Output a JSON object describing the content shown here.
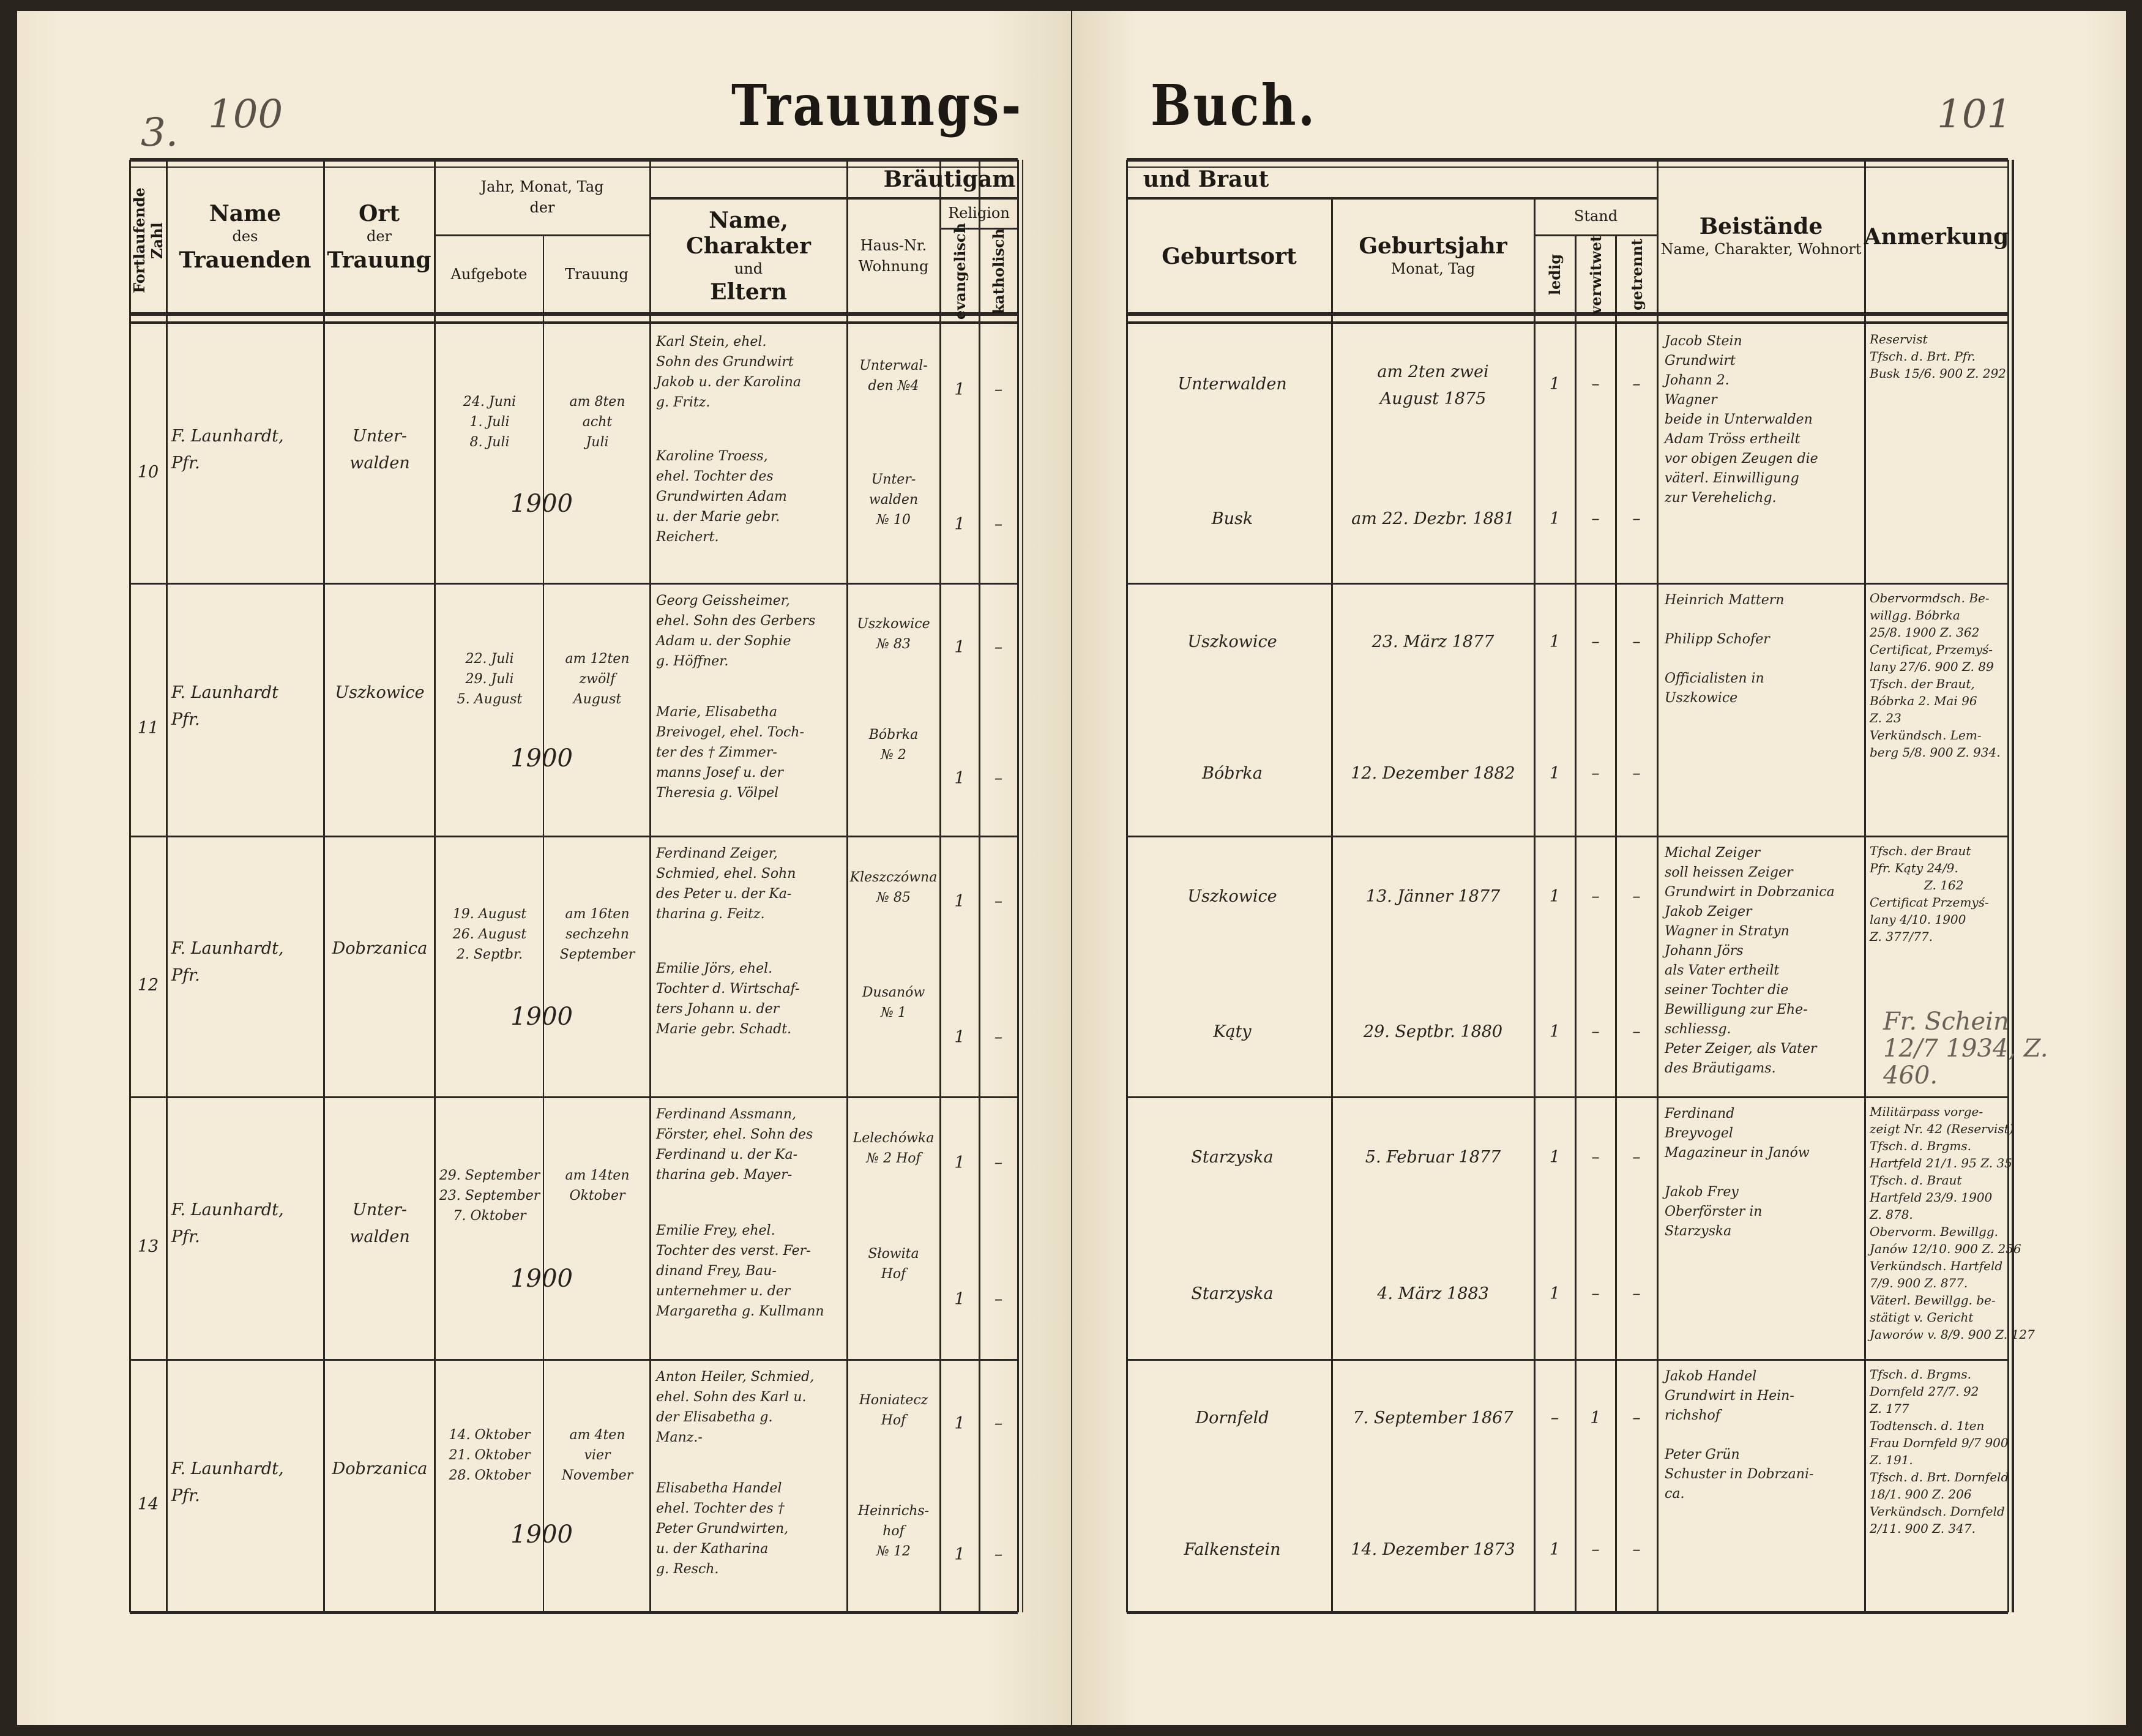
{
  "title": {
    "left": "Trauungs-",
    "right": "Buch."
  },
  "page_numbers": {
    "left_pencil": "3.",
    "left": "100",
    "right": "101"
  },
  "headers": {
    "number": "Fortlaufende Zahl",
    "officiant": {
      "l1": "Name",
      "l2": "des",
      "l3": "Trauenden"
    },
    "place": {
      "l1": "Ort",
      "l2": "der",
      "l3": "Trauung"
    },
    "dates": {
      "l1": "Jahr, Monat, Tag",
      "l2": "der",
      "banns": "Aufgebote",
      "wedding": "Trauung"
    },
    "groom": "Bräutigam",
    "and_bride": "und Braut",
    "name_parents": {
      "l1": "Name, Charakter",
      "l2": "und",
      "l3": "Eltern"
    },
    "house": {
      "l1": "Haus-Nr.",
      "l2": "Wohnung"
    },
    "religion": {
      "label": "Religion",
      "evangelical": "evangelisch",
      "catholic": "katholisch"
    },
    "birthplace": "Geburtsort",
    "birthdate": {
      "l1": "Geburtsjahr",
      "l2": "Monat, Tag"
    },
    "status": {
      "label": "Stand",
      "single": "ledig",
      "widowed": "verwitwet",
      "separated": "getrennt"
    },
    "witnesses": {
      "l1": "Beistände",
      "l2": "Name, Charakter, Wohnort"
    },
    "remarks": "Anmerkung"
  },
  "entries": [
    {
      "number": "10",
      "officiant": "F. Launhardt,\nPfr.",
      "place": "Unter-\nwalden",
      "banns": "24. Juni\n1. Juli\n8. Juli",
      "wedding": "am 8ten\nacht\nJuli",
      "year": "1900",
      "groom": {
        "name": "Karl Stein, ehel.\nSohn des Grundwirt\nJakob u. der Karolina\ng. Fritz.",
        "house": "Unterwal-\nden №4",
        "ev": "1",
        "kath": "–",
        "birthplace": "Unterwalden",
        "birthdate": "am 2ten zwei\nAugust 1875",
        "single": "1",
        "widowed": "–",
        "separated": "–"
      },
      "bride": {
        "name": "Karoline Troess,\nehel. Tochter des\nGrundwirten Adam\nu. der Marie gebr.\nReichert.",
        "house": "Unter-\nwalden\n№ 10",
        "ev": "1",
        "kath": "–",
        "birthplace": "Busk",
        "birthdate": "am 22. Dezbr. 1881",
        "single": "1",
        "widowed": "–",
        "separated": "–"
      },
      "witnesses": "Jacob Stein\n   Grundwirt\nJohann   2.\n   Wagner\nbeide in Unterwalden\nAdam Tröss ertheilt\nvor obigen Zeugen die\nväterl. Einwilligung\nzur Verehelichg.",
      "remarks": "Reservist\nTfsch. d. Brt. Pfr.\nBusk 15/6. 900 Z. 292",
      "annotation": ""
    },
    {
      "number": "11",
      "officiant": "F. Launhardt\nPfr.",
      "place": "Uszkowice",
      "banns": "22. Juli\n29. Juli\n5. August",
      "wedding": "am 12ten\nzwölf\nAugust",
      "year": "1900",
      "groom": {
        "name": "Georg Geissheimer,\nehel. Sohn des Gerbers\nAdam u. der Sophie\ng. Höffner.",
        "house": "Uszkowice\n№ 83",
        "ev": "1",
        "kath": "–",
        "birthplace": "Uszkowice",
        "birthdate": "23. März 1877",
        "single": "1",
        "widowed": "–",
        "separated": "–"
      },
      "bride": {
        "name": "Marie, Elisabetha\nBreivogel, ehel. Toch-\nter des † Zimmer-\nmanns Josef u. der\nTheresia g. Völpel",
        "house": "Bóbrka\n№ 2",
        "ev": "1",
        "kath": "–",
        "birthplace": "Bóbrka",
        "birthdate": "12. Dezember 1882",
        "single": "1",
        "widowed": "–",
        "separated": "–"
      },
      "witnesses": "Heinrich Mattern\n\nPhilipp Schofer\n\nOfficialisten in\n      Uszkowice",
      "remarks": "Obervormdsch. Be-\nwillgg. Bóbrka\n25/8. 1900 Z. 362\nCertificat, Przemyś-\nlany 27/6. 900 Z. 89\nTfsch. der Braut,\nBóbrka 2. Mai 96\nZ. 23\nVerkündsch. Lem-\nberg 5/8. 900 Z. 934.",
      "annotation": ""
    },
    {
      "number": "12",
      "officiant": "F. Launhardt,\nPfr.",
      "place": "Dobrzanica",
      "banns": "19. August\n26. August\n2. Septbr.",
      "wedding": "am 16ten\nsechzehn\nSeptember",
      "year": "1900",
      "groom": {
        "name": "Ferdinand Zeiger,\nSchmied, ehel. Sohn\ndes Peter u. der Ka-\ntharina g. Feitz.",
        "house": "Kleszczówna\n№ 85",
        "ev": "1",
        "kath": "–",
        "birthplace": "Uszkowice",
        "birthdate": "13. Jänner 1877",
        "single": "1",
        "widowed": "–",
        "separated": "–"
      },
      "bride": {
        "name": "Emilie Jörs, ehel.\nTochter d. Wirtschaf-\nters Johann u. der\nMarie gebr. Schadt.",
        "house": "Dusanów\n№ 1",
        "ev": "1",
        "kath": "–",
        "birthplace": "Kąty",
        "birthdate": "29. Septbr. 1880",
        "single": "1",
        "widowed": "–",
        "separated": "–"
      },
      "witnesses": "Michal Zeiger\nsoll heissen Zeiger\nGrundwirt in Dobrzanica\nJakob Zeiger\nWagner in Stratyn\nJohann Jörs\nals Vater ertheilt\nseiner Tochter die\nBewilligung zur Ehe-\nschliessg.\nPeter Zeiger, als Vater\ndes Bräutigams.",
      "remarks": "Tfsch. der Braut\nPfr. Kąty 24/9.\n              Z. 162\nCertificat Przemyś-\nlany 4/10. 1900\nZ. 377/77.",
      "annotation": "Fr. Schein\n12/7 1934, Z. 460."
    },
    {
      "number": "13",
      "officiant": "F. Launhardt,\nPfr.",
      "place": "Unter-\nwalden",
      "banns": "29. September\n23. September\n7. Oktober",
      "wedding": "am 14ten\nOktober",
      "year": "1900",
      "groom": {
        "name": "Ferdinand Assmann,\nFörster, ehel. Sohn des\nFerdinand u. der Ka-\ntharina geb. Mayer-",
        "house": "Lelechówka\n№ 2 Hof",
        "ev": "1",
        "kath": "–",
        "birthplace": "Starzyska",
        "birthdate": "5. Februar 1877",
        "single": "1",
        "widowed": "–",
        "separated": "–"
      },
      "bride": {
        "name": "Emilie Frey, ehel.\nTochter des verst. Fer-\ndinand Frey, Bau-\nunternehmer u. der\nMargaretha g. Kullmann",
        "house": "Słowita\nHof",
        "ev": "1",
        "kath": "–",
        "birthplace": "Starzyska",
        "birthdate": "4. März 1883",
        "single": "1",
        "widowed": "–",
        "separated": "–"
      },
      "witnesses": "Ferdinand\n   Breyvogel\nMagazineur in Janów\n\nJakob Frey\nOberförster in\n   Starzyska",
      "remarks": "Militärpass vorge-\nzeigt Nr. 42 (Reservist)\nTfsch. d. Brgms.\nHartfeld 21/1. 95 Z. 35\nTfsch. d. Braut\nHartfeld 23/9. 1900\nZ. 878.\nObervorm. Bewillgg.\nJanów 12/10. 900 Z. 256\nVerkündsch. Hartfeld\n7/9. 900 Z. 877.\nVäterl. Bewillgg. be-\nstätigt v. Gericht\nJaworów v. 8/9. 900 Z. 127",
      "annotation": ""
    },
    {
      "number": "14",
      "officiant": "F. Launhardt,\nPfr.",
      "place": "Dobrzanica",
      "banns": "14. Oktober\n21. Oktober\n28. Oktober",
      "wedding": "am 4ten\nvier\nNovember",
      "year": "1900",
      "groom": {
        "name": "Anton Heiler, Schmied,\nehel. Sohn des Karl u.\nder Elisabetha g.\nManz.-",
        "house": "Honiatecz\nHof",
        "ev": "1",
        "kath": "–",
        "birthplace": "Dornfeld",
        "birthdate": "7. September 1867",
        "single": "–",
        "widowed": "1",
        "separated": "–"
      },
      "bride": {
        "name": "Elisabetha Handel\nehel. Tochter des †\nPeter Grundwirten,\nu. der Katharina\ng. Resch.",
        "house": "Heinrichs-\nhof\n№ 12",
        "ev": "1",
        "kath": "–",
        "birthplace": "Falkenstein",
        "birthdate": "14. Dezember 1873",
        "single": "1",
        "widowed": "–",
        "separated": "–"
      },
      "witnesses": "Jakob Handel\nGrundwirt in Hein-\n      richshof\n\nPeter Grün\nSchuster in Dobrzani-\n         ca.",
      "remarks": "Tfsch. d. Brgms.\nDornfeld 27/7. 92\nZ. 177\nTodtensch. d. 1ten\nFrau Dornfeld 9/7 900\nZ. 191.\nTfsch. d. Brt. Dornfeld\n18/1. 900 Z. 206\nVerkündsch. Dornfeld\n2/11. 900 Z. 347.",
      "annotation": ""
    }
  ]
}
